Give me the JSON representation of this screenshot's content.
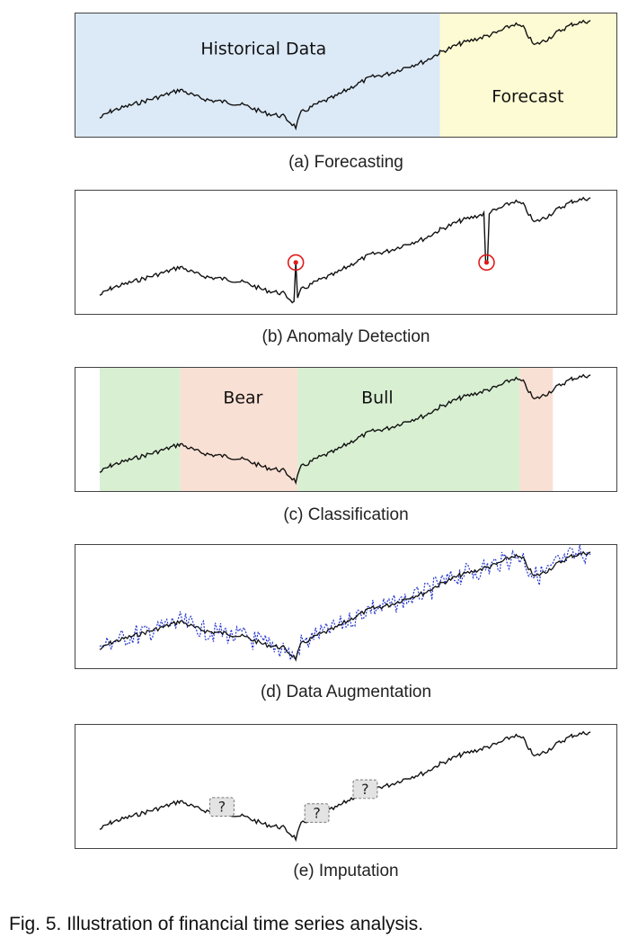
{
  "panels": [
    {
      "caption": "(a) Forecasting",
      "labels": [
        "Historical Data",
        "Forecast"
      ],
      "colors": {
        "historical": "#dce9f6",
        "forecast": "#fdfbd3"
      }
    },
    {
      "caption": "(b) Anomaly Detection",
      "colors": {
        "marker": "#e01919"
      }
    },
    {
      "caption": "(c) Classification",
      "labels": [
        "Bear",
        "Bull"
      ],
      "colors": {
        "bull": "#d8efd2",
        "bear": "#f9e0d4"
      }
    },
    {
      "caption": "(d) Data Augmentation",
      "colors": {
        "augmented": "#2233cc"
      }
    },
    {
      "caption": "(e) Imputation",
      "missing_marker": "?",
      "colors": {
        "marker_fill": "#e3e3e3"
      }
    }
  ],
  "figure_caption": "Fig. 5. Illustration of financial time series analysis."
}
